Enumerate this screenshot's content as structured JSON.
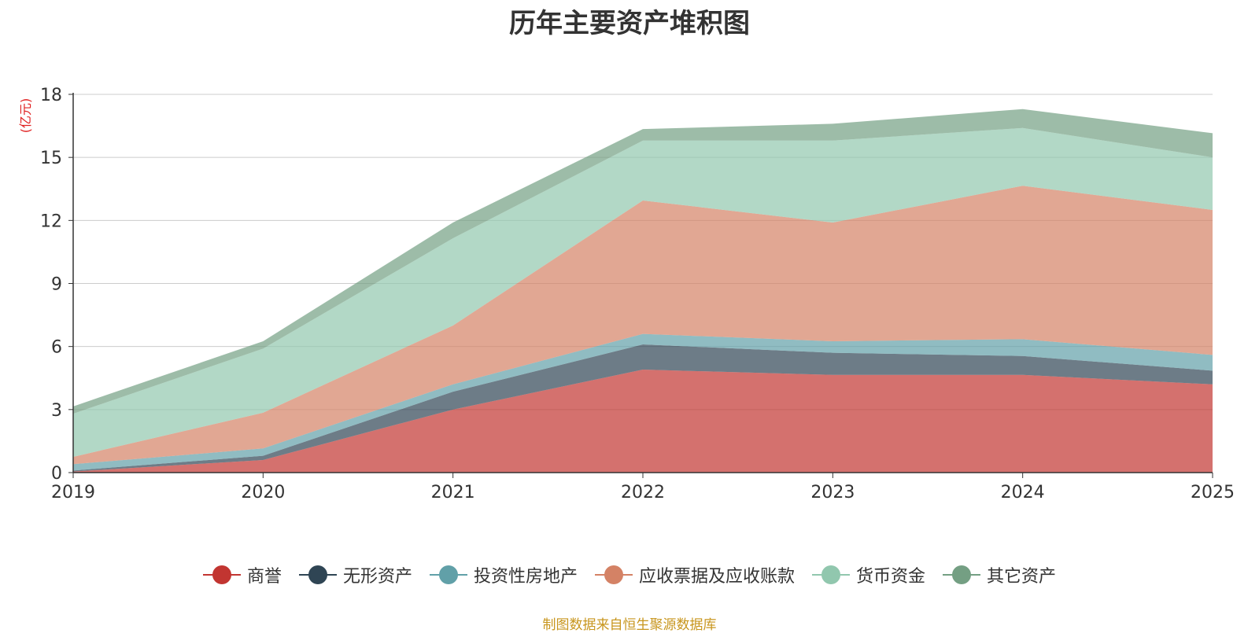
{
  "chart_data": {
    "type": "area",
    "stacked": true,
    "title": "历年主要资产堆积图",
    "ylabel": "(亿元)",
    "xlabel": "",
    "categories": [
      "2019",
      "2020",
      "2021",
      "2022",
      "2023",
      "2024",
      "2025"
    ],
    "yticks": [
      0,
      3,
      6,
      9,
      12,
      15,
      18
    ],
    "ylim": [
      0,
      18
    ],
    "grid": true,
    "legend_position": "bottom",
    "series": [
      {
        "name": "商誉",
        "color": "#c23531",
        "values": [
          0.05,
          0.6,
          3.0,
          4.9,
          4.65,
          4.65,
          4.2
        ]
      },
      {
        "name": "无形资产",
        "color": "#2f4554",
        "values": [
          0.05,
          0.2,
          0.85,
          1.2,
          1.05,
          0.9,
          0.65
        ]
      },
      {
        "name": "投资性房地产",
        "color": "#61a0a8",
        "values": [
          0.3,
          0.35,
          0.35,
          0.5,
          0.55,
          0.8,
          0.75
        ]
      },
      {
        "name": "应收票据及应收账款",
        "color": "#d48265",
        "values": [
          0.35,
          1.7,
          2.8,
          6.35,
          5.65,
          7.3,
          6.9
        ]
      },
      {
        "name": "货币资金",
        "color": "#91c7ae",
        "values": [
          2.05,
          3.05,
          4.15,
          2.85,
          3.9,
          2.75,
          2.5
        ]
      },
      {
        "name": "其它资产",
        "color": "#749f83",
        "values": [
          0.35,
          0.35,
          0.75,
          0.55,
          0.8,
          0.9,
          1.15
        ]
      }
    ]
  },
  "source_note": "制图数据来自恒生聚源数据库"
}
